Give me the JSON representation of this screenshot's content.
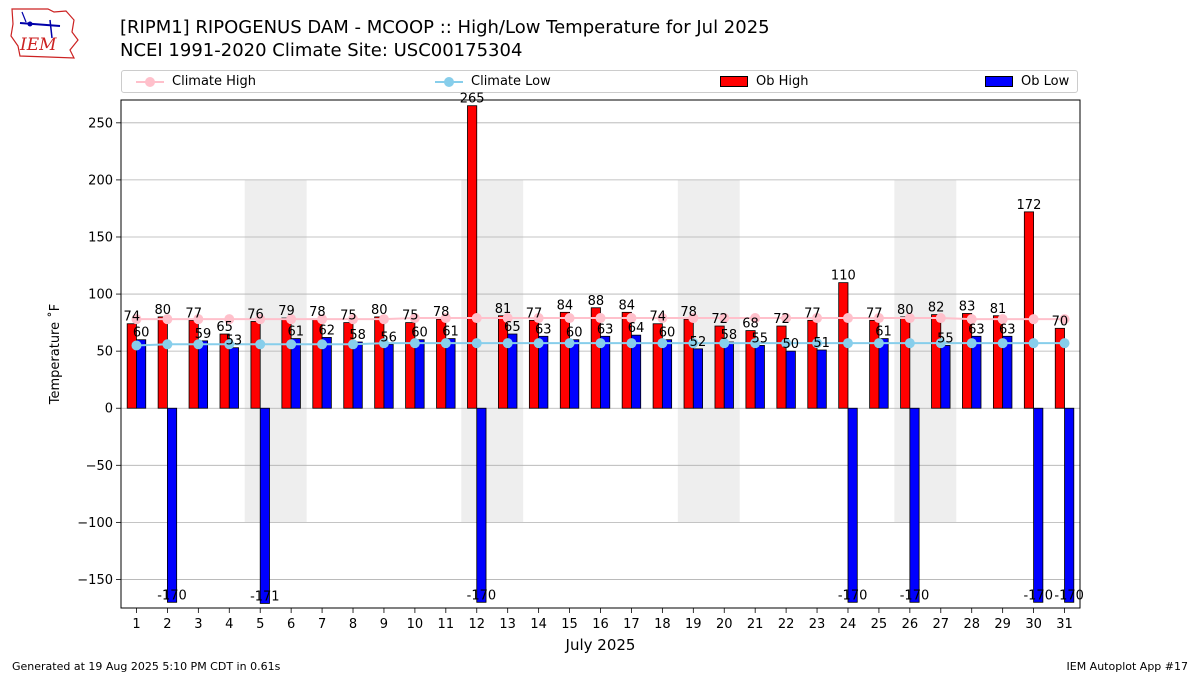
{
  "header": {
    "title_line1": "[RIPM1] RIPOGENUS DAM - MCOOP :: High/Low Temperature for Jul 2025",
    "title_line2": "NCEI 1991-2020 Climate Site: USC00175304",
    "logo_text": "IEM"
  },
  "footer": {
    "generated": "Generated at 19 Aug 2025 5:10 PM CDT in 0.61s",
    "app": "IEM Autoplot App #17"
  },
  "colors": {
    "ob_high": "#ff0000",
    "ob_low": "#0000ff",
    "climate_high": "#ffc0cb",
    "climate_low": "#87ceeb",
    "weekend_shade": "#eeeeee",
    "grid": "#b0b0b0"
  },
  "chart_data": {
    "type": "bar",
    "title": "[RIPM1] RIPOGENUS DAM - MCOOP :: High/Low Temperature for Jul 2025",
    "xlabel": "July 2025",
    "ylabel": "Temperature ˚F",
    "ylim": [
      -175,
      270
    ],
    "yticks": [
      -150,
      -100,
      -50,
      0,
      50,
      100,
      150,
      200,
      250
    ],
    "grid": true,
    "legend_position": "top",
    "categories": [
      "1",
      "2",
      "3",
      "4",
      "5",
      "6",
      "7",
      "8",
      "9",
      "10",
      "11",
      "12",
      "13",
      "14",
      "15",
      "16",
      "17",
      "18",
      "19",
      "20",
      "21",
      "22",
      "23",
      "24",
      "25",
      "26",
      "27",
      "28",
      "29",
      "30",
      "31"
    ],
    "shaded_ranges": [
      [
        5,
        6
      ],
      [
        12,
        13
      ],
      [
        19,
        20
      ],
      [
        26,
        27
      ]
    ],
    "shade_ylim": [
      -100,
      200
    ],
    "series": [
      {
        "name": "Ob High",
        "kind": "bar",
        "values": [
          74,
          80,
          77,
          65,
          76,
          79,
          78,
          75,
          80,
          75,
          78,
          265,
          81,
          77,
          84,
          88,
          84,
          74,
          78,
          72,
          68,
          72,
          77,
          110,
          77,
          80,
          82,
          83,
          81,
          172,
          70
        ]
      },
      {
        "name": "Ob Low",
        "kind": "bar",
        "values": [
          60,
          -170,
          59,
          53,
          -171,
          61,
          62,
          58,
          56,
          60,
          61,
          -170,
          65,
          63,
          60,
          63,
          64,
          60,
          52,
          58,
          55,
          50,
          51,
          -170,
          61,
          -170,
          55,
          63,
          63,
          -170,
          -170
        ]
      },
      {
        "name": "Climate High",
        "kind": "line",
        "values": [
          78,
          78,
          78,
          78,
          78,
          78,
          78,
          78,
          78,
          79,
          79,
          79,
          79,
          79,
          79,
          79,
          79,
          79,
          79,
          79,
          79,
          79,
          79,
          79,
          79,
          79,
          79,
          78,
          78,
          78,
          78
        ]
      },
      {
        "name": "Climate Low",
        "kind": "line",
        "values": [
          55,
          56,
          56,
          56,
          56,
          56,
          56,
          56,
          57,
          57,
          57,
          57,
          57,
          57,
          57,
          57,
          57,
          57,
          57,
          57,
          57,
          57,
          57,
          57,
          57,
          57,
          57,
          57,
          57,
          57,
          57
        ]
      }
    ]
  }
}
